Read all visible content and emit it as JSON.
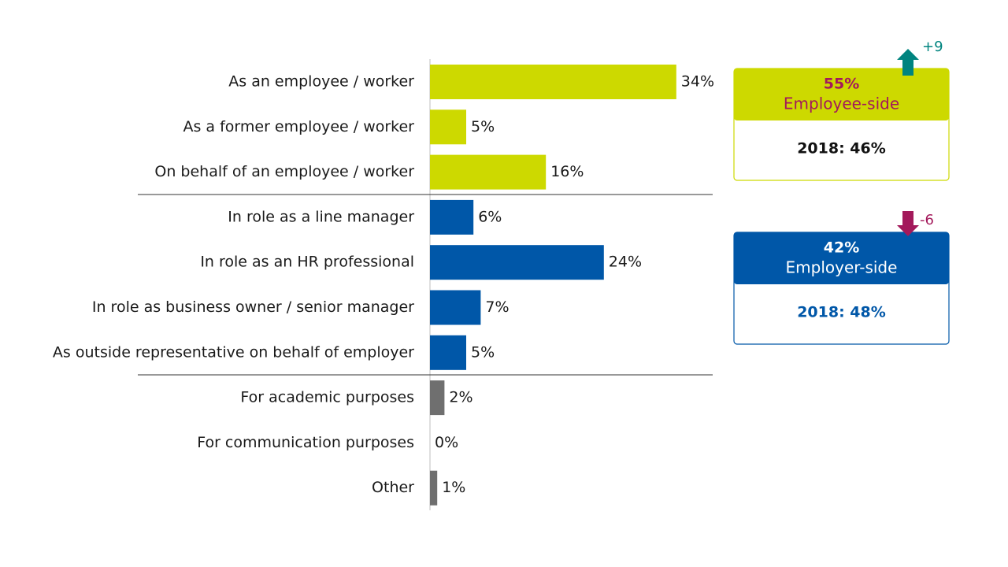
{
  "chart_data": {
    "type": "bar",
    "orientation": "horizontal",
    "categories": [
      "As an employee / worker",
      "As a former employee / worker",
      "On behalf of an employee / worker",
      "In role as a line manager",
      "In role as an HR professional",
      "In role as business owner / senior manager",
      "As outside representative on behalf of employer",
      "For academic purposes",
      "For communication purposes",
      "Other"
    ],
    "values": [
      34,
      5,
      16,
      6,
      24,
      7,
      5,
      2,
      0,
      1
    ],
    "value_labels": [
      "34%",
      "5%",
      "16%",
      "6%",
      "24%",
      "7%",
      "5%",
      "2%",
      "0%",
      "1%"
    ],
    "colors": [
      "#cdd900",
      "#cdd900",
      "#cdd900",
      "#0057a8",
      "#0057a8",
      "#0057a8",
      "#0057a8",
      "#6f6f6f",
      "#6f6f6f",
      "#6f6f6f"
    ],
    "summary_boxes": [
      {
        "value": "55%",
        "label": "Employee-side",
        "comparison": "2018: 46%",
        "change": "+9",
        "direction": "up",
        "color": "#cdd900",
        "text_color": "#a3195b",
        "comparison_color": "#111111",
        "arrow_color": "#00847f"
      },
      {
        "value": "42%",
        "label": "Employer-side",
        "comparison": "2018: 48%",
        "change": "-6",
        "direction": "down",
        "color": "#0057a8",
        "text_color": "#ffffff",
        "comparison_color": "#0057a8",
        "arrow_color": "#a3195b"
      }
    ]
  }
}
